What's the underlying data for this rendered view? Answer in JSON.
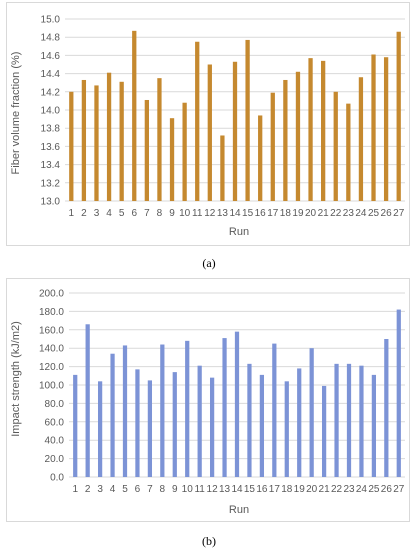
{
  "captions": {
    "a": "(a)",
    "b": "(b)"
  },
  "chart_data": [
    {
      "type": "bar",
      "title": "",
      "xlabel": "Run",
      "ylabel": "Fiber volume fraction (%)",
      "ylim": [
        13.0,
        15.0
      ],
      "ytick_step": 0.2,
      "yticks": [
        "13.0",
        "13.2",
        "13.4",
        "13.6",
        "13.8",
        "14.0",
        "14.2",
        "14.4",
        "14.6",
        "14.8",
        "15.0"
      ],
      "grid": true,
      "bar_color": "#c5892f",
      "categories": [
        "1",
        "2",
        "3",
        "4",
        "5",
        "6",
        "7",
        "8",
        "9",
        "10",
        "11",
        "12",
        "13",
        "14",
        "15",
        "16",
        "17",
        "18",
        "19",
        "20",
        "21",
        "22",
        "23",
        "24",
        "25",
        "26",
        "27"
      ],
      "values": [
        14.2,
        14.33,
        14.27,
        14.41,
        14.31,
        14.87,
        14.11,
        14.35,
        13.91,
        14.08,
        14.75,
        14.5,
        13.72,
        14.53,
        14.77,
        13.94,
        14.19,
        14.33,
        14.42,
        14.57,
        14.54,
        14.2,
        14.07,
        14.36,
        14.61,
        14.58,
        14.86
      ]
    },
    {
      "type": "bar",
      "title": "",
      "xlabel": "Run",
      "ylabel": "Impact strength (kJ/m2)",
      "ylim": [
        0,
        200
      ],
      "ytick_step": 20,
      "yticks": [
        "0.0",
        "20.0",
        "40.0",
        "60.0",
        "80.0",
        "100.0",
        "120.0",
        "140.0",
        "160.0",
        "180.0",
        "200.0"
      ],
      "grid": true,
      "bar_color": "#7c93d6",
      "categories": [
        "1",
        "2",
        "3",
        "4",
        "5",
        "6",
        "7",
        "8",
        "9",
        "10",
        "11",
        "12",
        "13",
        "14",
        "15",
        "16",
        "17",
        "18",
        "19",
        "20",
        "21",
        "22",
        "23",
        "24",
        "25",
        "26",
        "27"
      ],
      "values": [
        111,
        166,
        104,
        134,
        143,
        117,
        105,
        144,
        114,
        148,
        121,
        108,
        151,
        158,
        123,
        111,
        145,
        104,
        118,
        140,
        99,
        123,
        123,
        121,
        111,
        150,
        182
      ]
    }
  ]
}
